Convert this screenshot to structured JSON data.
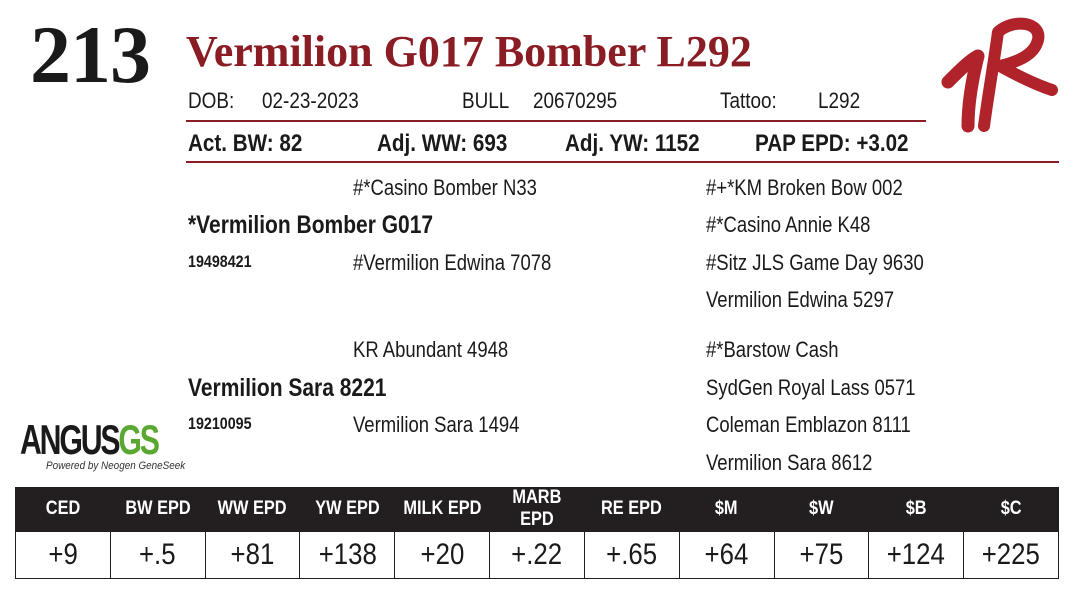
{
  "lot_number": "213",
  "animal_name": "Vermilion G017 Bomber L292",
  "details": {
    "dob_label": "DOB:",
    "dob": "02-23-2023",
    "sex": "BULL",
    "registration": "20670295",
    "tattoo_label": "Tattoo:",
    "tattoo": "L292"
  },
  "stats": {
    "act_bw": "Act. BW: 82",
    "adj_ww": "Adj. WW: 693",
    "adj_yw": "Adj. YW: 1152",
    "pap_epd": "PAP EPD: +3.02"
  },
  "pedigree": {
    "sire": {
      "name": "*Vermilion Bomber G017",
      "registration": "19498421",
      "sire": "#*Casino Bomber N33",
      "dam": "#Vermilion Edwina 7078",
      "sire_sire": "#+*KM Broken Bow 002",
      "sire_dam": "#*Casino Annie K48",
      "dam_sire": "#Sitz JLS Game Day 9630",
      "dam_dam": "Vermilion Edwina 5297"
    },
    "dam": {
      "name": "Vermilion Sara 8221",
      "registration": "19210095",
      "sire": "KR Abundant 4948",
      "dam": "Vermilion Sara 1494",
      "sire_sire": "#*Barstow Cash",
      "sire_dam": "SydGen Royal Lass 0571",
      "dam_sire": "Coleman Emblazon 8111",
      "dam_dam": "Vermilion Sara 8612"
    }
  },
  "logo": {
    "word_main": "ANGUS",
    "word_accent": "GS",
    "tagline": "Powered by Neogen GeneSeek",
    "accent_color": "#5aa832"
  },
  "brand_mark_color": "#b0232a",
  "accent_color": "#8a1c24",
  "epd_table": {
    "headers": [
      "CED",
      "BW EPD",
      "WW EPD",
      "YW EPD",
      "MILK EPD",
      "MARB EPD",
      "RE EPD",
      "$M",
      "$W",
      "$B",
      "$C"
    ],
    "values": [
      "+9",
      "+.5",
      "+81",
      "+138",
      "+20",
      "+.22",
      "+.65",
      "+64",
      "+75",
      "+124",
      "+225"
    ]
  }
}
